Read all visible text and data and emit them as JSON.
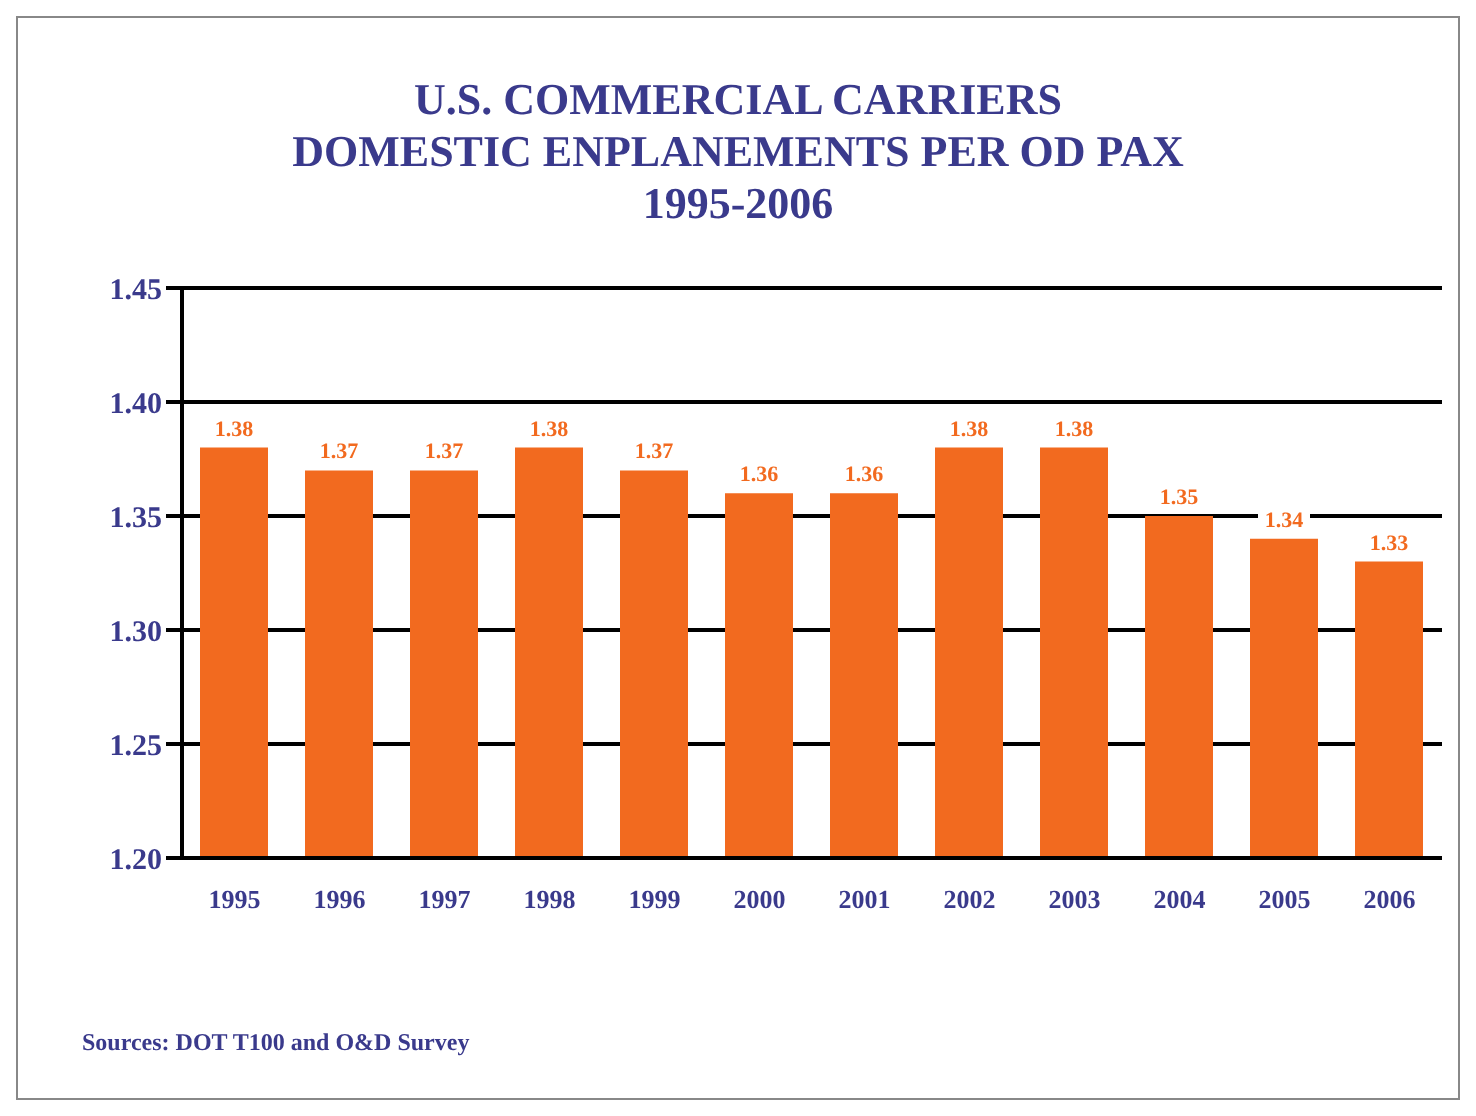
{
  "chart_data": {
    "type": "bar",
    "title": "U.S. COMMERCIAL CARRIERS\nDOMESTIC ENPLANEMENTS PER OD PAX\n1995-2006",
    "categories": [
      "1995",
      "1996",
      "1997",
      "1998",
      "1999",
      "2000",
      "2001",
      "2002",
      "2003",
      "2004",
      "2005",
      "2006"
    ],
    "values": [
      1.38,
      1.37,
      1.37,
      1.38,
      1.37,
      1.36,
      1.36,
      1.38,
      1.38,
      1.35,
      1.34,
      1.33
    ],
    "color": "#f26a1f",
    "data_labels": true,
    "ylim": [
      1.2,
      1.45
    ],
    "yticks": [
      {
        "value": 1.2,
        "label": "1.20"
      },
      1.25,
      {
        "value": 1.3,
        "label": "1.30"
      },
      1.35,
      {
        "value": 1.4,
        "label": "1.40"
      },
      1.45
    ],
    "grid": "y",
    "annotations": [
      "Sources:  DOT T100 and O&D Survey"
    ]
  }
}
